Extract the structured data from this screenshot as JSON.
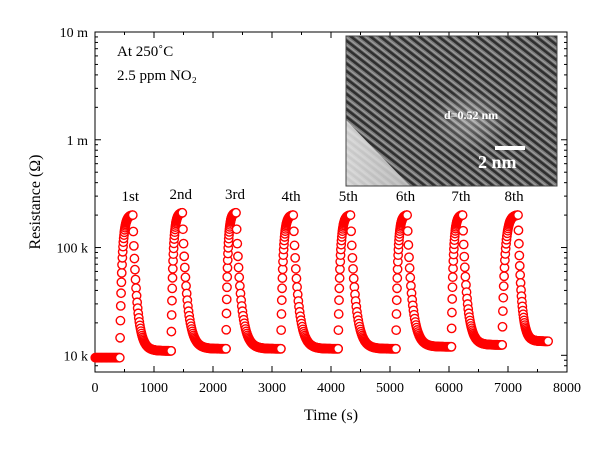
{
  "chart_data": {
    "type": "scatter",
    "title": "",
    "xlabel": "Time (s)",
    "ylabel": "Resistance (Ω)",
    "xlim": [
      0,
      8000
    ],
    "ylim": [
      7000,
      10000000
    ],
    "yscale": "log",
    "xticks": [
      0,
      1000,
      2000,
      3000,
      4000,
      5000,
      6000,
      7000,
      8000
    ],
    "xtick_labels": [
      "0",
      "1000",
      "2000",
      "3000",
      "4000",
      "5000",
      "6000",
      "7000",
      "8000"
    ],
    "yticks": [
      10000,
      100000,
      1000000,
      10000000
    ],
    "ytick_labels": [
      "10 k",
      "100 k",
      "1 m",
      "10 m"
    ],
    "grid": false,
    "marker": "open-circle",
    "series_color": "#ff0000",
    "condition_labels": [
      "At 250˚C",
      "2.5 ppm NO₂"
    ],
    "cycle_labels": [
      "1st",
      "2nd",
      "3rd",
      "4th",
      "5th",
      "6th",
      "7th",
      "8th"
    ],
    "cycles": [
      {
        "on_time": 420,
        "off_time": 640,
        "base": 9500,
        "peak": 200000
      },
      {
        "on_time": 1290,
        "off_time": 1480,
        "base": 11000,
        "peak": 210000
      },
      {
        "on_time": 2220,
        "off_time": 2390,
        "base": 11500,
        "peak": 210000
      },
      {
        "on_time": 3150,
        "off_time": 3360,
        "base": 11500,
        "peak": 200000
      },
      {
        "on_time": 4120,
        "off_time": 4330,
        "base": 11500,
        "peak": 200000
      },
      {
        "on_time": 5100,
        "off_time": 5290,
        "base": 11500,
        "peak": 200000
      },
      {
        "on_time": 6040,
        "off_time": 6230,
        "base": 12000,
        "peak": 200000
      },
      {
        "on_time": 6900,
        "off_time": 7170,
        "base": 12500,
        "peak": 200000
      }
    ],
    "initial_baseline": {
      "start": 0,
      "end": 420,
      "value": 9500
    },
    "final_point": {
      "x": 7680,
      "y": 13500
    },
    "inset": {
      "type": "TEM micrograph",
      "annotation": "d=0.52 nm",
      "scale_bar": "2 nm"
    }
  }
}
